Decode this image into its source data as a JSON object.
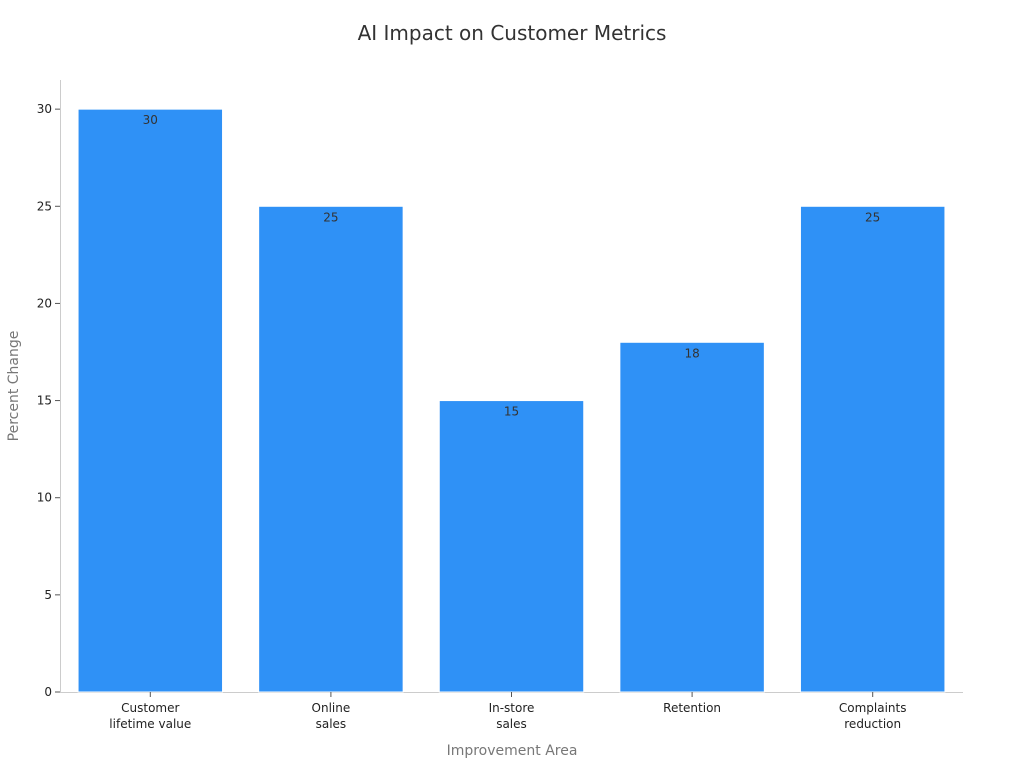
{
  "chart_data": {
    "type": "bar",
    "title": "AI Impact on Customer Metrics",
    "xlabel": "Improvement Area",
    "ylabel": "Percent Change",
    "categories": [
      [
        "Customer",
        "lifetime value"
      ],
      [
        "Online",
        "sales"
      ],
      [
        "In-store",
        "sales"
      ],
      [
        "Retention"
      ],
      [
        "Complaints",
        "reduction"
      ]
    ],
    "values": [
      30,
      25,
      15,
      18,
      25
    ],
    "data_labels": [
      "30",
      "25",
      "15",
      "18",
      "25"
    ],
    "y_ticks": [
      0,
      5,
      10,
      15,
      20,
      25,
      30
    ],
    "ylim": [
      0,
      31.5
    ],
    "grid": false,
    "legend": "none",
    "bar_color": "#2f91f6"
  }
}
